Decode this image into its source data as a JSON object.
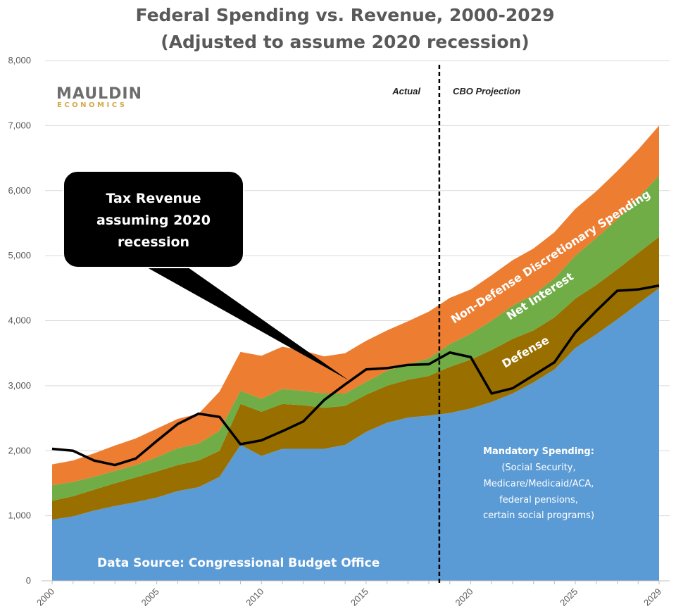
{
  "chart_data": {
    "type": "area",
    "stacked": true,
    "title": "Federal Spending vs. Revenue, 2000-2029",
    "subtitle": "(Adjusted to assume 2020 recession)",
    "xlabel": "",
    "ylabel": "",
    "x": [
      2000,
      2001,
      2002,
      2003,
      2004,
      2005,
      2006,
      2007,
      2008,
      2009,
      2010,
      2011,
      2012,
      2013,
      2014,
      2015,
      2016,
      2017,
      2018,
      2019,
      2020,
      2021,
      2022,
      2023,
      2024,
      2025,
      2026,
      2027,
      2028,
      2029
    ],
    "x_tick_labels": [
      "2000",
      "2005",
      "2010",
      "2015",
      "2020",
      "2025",
      "2029"
    ],
    "ylim": [
      0,
      8000
    ],
    "y_tick_labels": [
      "0",
      "1,000",
      "2,000",
      "3,000",
      "4,000",
      "5,000",
      "6,000",
      "7,000",
      "8,000"
    ],
    "grid": true,
    "series": [
      {
        "name": "Mandatory Spending:",
        "color": "#5b9bd5",
        "values": [
          940,
          990,
          1080,
          1150,
          1210,
          1280,
          1380,
          1440,
          1600,
          2090,
          1920,
          2030,
          2030,
          2030,
          2090,
          2290,
          2430,
          2510,
          2540,
          2580,
          2650,
          2750,
          2880,
          3050,
          3250,
          3580,
          3790,
          4020,
          4260,
          4500
        ]
      },
      {
        "name": "Defense",
        "color": "#996f00",
        "values": [
          290,
          310,
          320,
          350,
          380,
          400,
          400,
          410,
          400,
          630,
          680,
          690,
          670,
          630,
          600,
          570,
          570,
          580,
          610,
          710,
          750,
          800,
          840,
          800,
          800,
          760,
          760,
          770,
          780,
          790
        ]
      },
      {
        "name": "Net Interest",
        "color": "#70ad47",
        "values": [
          240,
          220,
          200,
          190,
          190,
          220,
          260,
          260,
          310,
          200,
          200,
          230,
          220,
          220,
          190,
          200,
          230,
          240,
          270,
          350,
          400,
          450,
          510,
          550,
          600,
          660,
          720,
          770,
          850,
          940
        ]
      },
      {
        "name": "Non-Defense Discretionary Spending",
        "color": "#ed7d31",
        "values": [
          320,
          330,
          360,
          390,
          410,
          440,
          450,
          460,
          600,
          600,
          660,
          650,
          620,
          570,
          620,
          630,
          620,
          660,
          720,
          710,
          680,
          700,
          700,
          710,
          710,
          720,
          720,
          740,
          740,
          770
        ]
      }
    ],
    "line_series": {
      "color": "#000000",
      "values": [
        2030,
        2000,
        1850,
        1780,
        1880,
        2150,
        2410,
        2570,
        2520,
        2100,
        2160,
        2300,
        2450,
        2780,
        3020,
        3250,
        3270,
        3320,
        3330,
        3510,
        3440,
        2880,
        2960,
        3160,
        3360,
        3820,
        4150,
        4460,
        4480,
        4540
      ]
    },
    "mandatory_detail": [
      "(Social Security,",
      "Medicare/Medicaid/ACA,",
      "federal pensions,",
      "certain social programs)"
    ],
    "callout": [
      "Tax Revenue",
      "assuming 2020",
      "recession"
    ],
    "divider_year": 2018.5,
    "phase_labels": {
      "actual": "Actual",
      "projection": "CBO Projection"
    },
    "source_note": "Data Source: Congressional Budget Office",
    "logo": {
      "line1": "MAULDIN",
      "line2": "ECONOMICS"
    }
  }
}
